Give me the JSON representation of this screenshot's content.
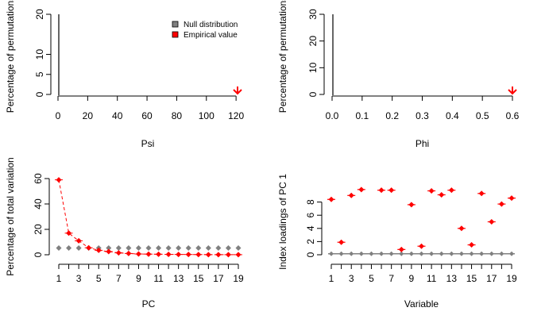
{
  "colors": {
    "null": "#808080",
    "empirical": "#ff0000",
    "axis": "#000000"
  },
  "legend": {
    "entries": [
      {
        "label": "Null distribution",
        "color": "#808080"
      },
      {
        "label": "Empirical value",
        "color": "#ff0000"
      }
    ]
  },
  "chart_data": [
    {
      "type": "histogram",
      "title": "",
      "xlabel": "Psi",
      "ylabel": "Percentage of permutations",
      "xlim": [
        0,
        121
      ],
      "ylim": [
        0,
        20
      ],
      "xticks": [
        "0",
        "20",
        "40",
        "60",
        "80",
        "100",
        "120"
      ],
      "yticks": [
        "0",
        "5",
        "10",
        "20"
      ],
      "null_bars": [],
      "empirical_value": 121,
      "legend_position": "top-right"
    },
    {
      "type": "histogram",
      "title": "",
      "xlabel": "Phi",
      "ylabel": "Percentage of permutations",
      "xlim": [
        0,
        0.6
      ],
      "ylim": [
        0,
        30
      ],
      "xticks": [
        "0.0",
        "0.1",
        "0.2",
        "0.3",
        "0.4",
        "0.5",
        "0.6"
      ],
      "yticks": [
        "0",
        "10",
        "20",
        "30"
      ],
      "null_bars": [],
      "empirical_value": 0.6
    },
    {
      "type": "line",
      "title": "",
      "xlabel": "PC",
      "ylabel": "Percentage of total variation",
      "xlim": [
        1,
        19
      ],
      "ylim": [
        0,
        60
      ],
      "xticks": [
        "1",
        "3",
        "5",
        "7",
        "9",
        "11",
        "13",
        "15",
        "17",
        "19"
      ],
      "yticks": [
        "0",
        "20",
        "40",
        "60"
      ],
      "x": [
        1,
        2,
        3,
        4,
        5,
        6,
        7,
        8,
        9,
        10,
        11,
        12,
        13,
        14,
        15,
        16,
        17,
        19,
        18
      ],
      "series": [
        {
          "name": "Null distribution",
          "values": [
            5.3,
            5.3,
            5.3,
            5.3,
            5.3,
            5.3,
            5.3,
            5.3,
            5.3,
            5.3,
            5.3,
            5.3,
            5.3,
            5.3,
            5.3,
            5.3,
            5.3,
            5.3,
            5.3
          ]
        },
        {
          "name": "Empirical value",
          "values": [
            59,
            17,
            11,
            5.5,
            3.5,
            2.5,
            1.5,
            1.0,
            0.6,
            0.5,
            0.4,
            0.3,
            0.25,
            0.2,
            0.15,
            0.1,
            0.08,
            0.05,
            0.06
          ]
        }
      ]
    },
    {
      "type": "scatter",
      "title": "",
      "xlabel": "Variable",
      "ylabel": "Index loadings of PC 1",
      "xlim": [
        1,
        19
      ],
      "ylim": [
        0,
        10
      ],
      "xticks": [
        "1",
        "3",
        "5",
        "7",
        "9",
        "11",
        "13",
        "15",
        "17",
        "19"
      ],
      "yticks": [
        "0",
        "2",
        "4",
        "6",
        "8"
      ],
      "x": [
        1,
        2,
        3,
        4,
        5,
        6,
        7,
        8,
        9,
        10,
        11,
        12,
        13,
        14,
        15,
        16,
        17,
        18,
        19
      ],
      "series": [
        {
          "name": "Null distribution",
          "values": [
            0.15,
            0.15,
            0.15,
            0.15,
            0.15,
            0.15,
            0.15,
            0.15,
            0.15,
            0.15,
            0.15,
            0.15,
            0.15,
            0.15,
            0.15,
            0.15,
            0.15,
            0.15,
            0.15
          ]
        },
        {
          "name": "Empirical value",
          "values": [
            8.4,
            1.9,
            9.0,
            9.9,
            0,
            9.8,
            9.8,
            0.8,
            7.6,
            1.3,
            9.7,
            9.1,
            9.8,
            4.0,
            1.5,
            9.3,
            5.0,
            7.7,
            8.6
          ]
        }
      ]
    }
  ]
}
